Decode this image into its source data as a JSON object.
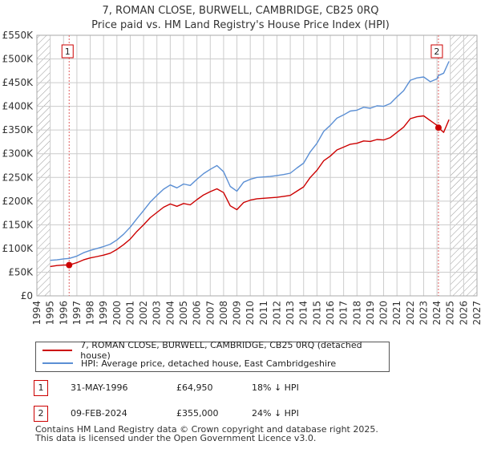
{
  "title_line1": "7, ROMAN CLOSE, BURWELL, CAMBRIDGE, CB25 0RQ",
  "title_line2": "Price paid vs. HM Land Registry's House Price Index (HPI)",
  "colors": {
    "property": "#cc0000",
    "hpi": "#5b8fd4",
    "grid": "#cccccc",
    "marker_line": "#e06060",
    "hatch": "#999999"
  },
  "legend": {
    "property_label": "7, ROMAN CLOSE, BURWELL, CAMBRIDGE, CB25 0RQ (detached house)",
    "hpi_label": "HPI: Average price, detached house, East Cambridgeshire"
  },
  "annotations": [
    {
      "num": "1",
      "date": "31-MAY-1996",
      "price": "£64,950",
      "hpi_diff": "18% ↓ HPI"
    },
    {
      "num": "2",
      "date": "09-FEB-2024",
      "price": "£355,000",
      "hpi_diff": "24% ↓ HPI"
    }
  ],
  "footer_line1": "Contains HM Land Registry data © Crown copyright and database right 2025.",
  "footer_line2": "This data is licensed under the Open Government Licence v3.0.",
  "chart_data": {
    "type": "line",
    "ylim": [
      0,
      550000
    ],
    "xlim": [
      1994,
      2027
    ],
    "yticks": [
      0,
      50000,
      100000,
      150000,
      200000,
      250000,
      300000,
      350000,
      400000,
      450000,
      500000,
      550000
    ],
    "ytick_labels": [
      "£0",
      "£50K",
      "£100K",
      "£150K",
      "£200K",
      "£250K",
      "£300K",
      "£350K",
      "£400K",
      "£450K",
      "£500K",
      "£550K"
    ],
    "xticks": [
      1994,
      1995,
      1996,
      1997,
      1998,
      1999,
      2000,
      2001,
      2002,
      2003,
      2004,
      2005,
      2006,
      2007,
      2008,
      2009,
      2010,
      2011,
      2012,
      2013,
      2014,
      2015,
      2016,
      2017,
      2018,
      2019,
      2020,
      2021,
      2022,
      2023,
      2024,
      2025,
      2026,
      2027
    ],
    "hatch_before": 1995.0,
    "hatch_after": 2025.0,
    "series": [
      {
        "name": "7, ROMAN CLOSE, BURWELL, CAMBRIDGE, CB25 0RQ (detached house)",
        "x": [
          1995.0,
          1995.5,
          1996.0,
          1996.42,
          1997.0,
          1997.5,
          1998.0,
          1998.5,
          1999.0,
          1999.5,
          2000.0,
          2000.5,
          2001.0,
          2001.5,
          2002.0,
          2002.5,
          2003.0,
          2003.5,
          2004.0,
          2004.5,
          2005.0,
          2005.5,
          2006.0,
          2006.5,
          2007.0,
          2007.5,
          2008.0,
          2008.5,
          2009.0,
          2009.5,
          2010.0,
          2010.5,
          2011.0,
          2011.5,
          2012.0,
          2012.5,
          2013.0,
          2013.5,
          2014.0,
          2014.5,
          2015.0,
          2015.5,
          2016.0,
          2016.5,
          2017.0,
          2017.5,
          2018.0,
          2018.5,
          2019.0,
          2019.5,
          2020.0,
          2020.5,
          2021.0,
          2021.5,
          2022.0,
          2022.5,
          2023.0,
          2023.5,
          2024.0,
          2024.11,
          2024.5,
          2024.9
        ],
        "values": [
          62000,
          64000,
          65000,
          64950,
          70000,
          76000,
          80000,
          83000,
          86000,
          90000,
          98000,
          108000,
          120000,
          136000,
          150000,
          165000,
          176000,
          187000,
          194000,
          189000,
          195000,
          192000,
          203000,
          213000,
          220000,
          226000,
          218000,
          190000,
          182000,
          197000,
          202000,
          205000,
          206000,
          207000,
          208000,
          210000,
          212000,
          221000,
          230000,
          250000,
          265000,
          285000,
          295000,
          308000,
          314000,
          320000,
          322000,
          327000,
          326000,
          330000,
          329000,
          334000,
          345000,
          356000,
          374000,
          378000,
          380000,
          370000,
          360000,
          355000,
          345000,
          372000
        ]
      },
      {
        "name": "HPI: Average price, detached house, East Cambridgeshire",
        "x": [
          1995.0,
          1995.5,
          1996.0,
          1996.42,
          1997.0,
          1997.5,
          1998.0,
          1998.5,
          1999.0,
          1999.5,
          2000.0,
          2000.5,
          2001.0,
          2001.5,
          2002.0,
          2002.5,
          2003.0,
          2003.5,
          2004.0,
          2004.5,
          2005.0,
          2005.5,
          2006.0,
          2006.5,
          2007.0,
          2007.5,
          2008.0,
          2008.5,
          2009.0,
          2009.5,
          2010.0,
          2010.5,
          2011.0,
          2011.5,
          2012.0,
          2012.5,
          2013.0,
          2013.5,
          2014.0,
          2014.5,
          2015.0,
          2015.5,
          2016.0,
          2016.5,
          2017.0,
          2017.5,
          2018.0,
          2018.5,
          2019.0,
          2019.5,
          2020.0,
          2020.5,
          2021.0,
          2021.5,
          2022.0,
          2022.5,
          2023.0,
          2023.5,
          2024.0,
          2024.11,
          2024.5,
          2024.9
        ],
        "values": [
          75000,
          76000,
          78000,
          79000,
          84000,
          91000,
          96000,
          100000,
          104000,
          109000,
          118000,
          130000,
          145000,
          163000,
          180000,
          198000,
          212000,
          225000,
          234000,
          228000,
          236000,
          233000,
          246000,
          258000,
          267000,
          275000,
          262000,
          231000,
          221000,
          240000,
          246000,
          250000,
          251000,
          252000,
          254000,
          256000,
          259000,
          270000,
          280000,
          304000,
          322000,
          347000,
          360000,
          375000,
          382000,
          390000,
          392000,
          398000,
          396000,
          401000,
          400000,
          406000,
          420000,
          433000,
          455000,
          460000,
          462000,
          452000,
          458000,
          465000,
          470000,
          495000
        ]
      }
    ],
    "markers": [
      {
        "label": "1",
        "x": 1996.42,
        "value": 64950
      },
      {
        "label": "2",
        "x": 2024.11,
        "value": 355000
      }
    ]
  }
}
